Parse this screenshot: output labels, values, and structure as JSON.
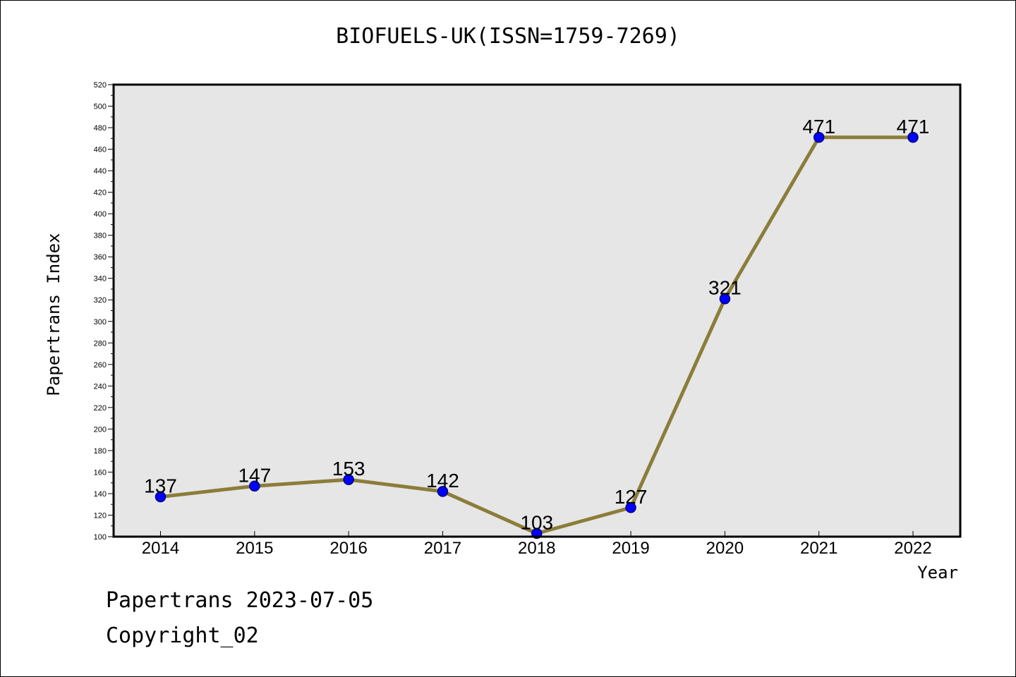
{
  "chart_data": {
    "type": "line",
    "title": "BIOFUELS-UK(ISSN=1759-7269)",
    "xlabel": "Year",
    "ylabel": "Papertrans Index",
    "categories": [
      "2014",
      "2015",
      "2016",
      "2017",
      "2018",
      "2019",
      "2020",
      "2021",
      "2022"
    ],
    "series": [
      {
        "values": [
          137,
          147,
          153,
          142,
          103,
          127,
          321,
          471,
          471
        ]
      }
    ],
    "data_labels": [
      "137",
      "147",
      "153",
      "142",
      "103",
      "127",
      "321",
      "471",
      "471"
    ],
    "ylim": [
      100,
      520
    ],
    "yticks": [
      100,
      120,
      140,
      160,
      180,
      200,
      220,
      240,
      260,
      280,
      300,
      320,
      340,
      360,
      380,
      400,
      420,
      440,
      460,
      480,
      500,
      520
    ],
    "ytick_labels": [
      "100",
      "120",
      "140",
      "160",
      "180",
      "200",
      "220",
      "240",
      "260",
      "280",
      "300",
      "320",
      "340",
      "360",
      "380",
      "400",
      "420",
      "440",
      "460",
      "480",
      "500",
      "520"
    ],
    "grid": false,
    "colors": {
      "line": "#8b7d3a",
      "marker": "#0000ff",
      "plot_bg": "#e6e6e6"
    }
  },
  "footer": {
    "date_line": "Papertrans 2023-07-05",
    "copyright": "Copyright_02"
  }
}
